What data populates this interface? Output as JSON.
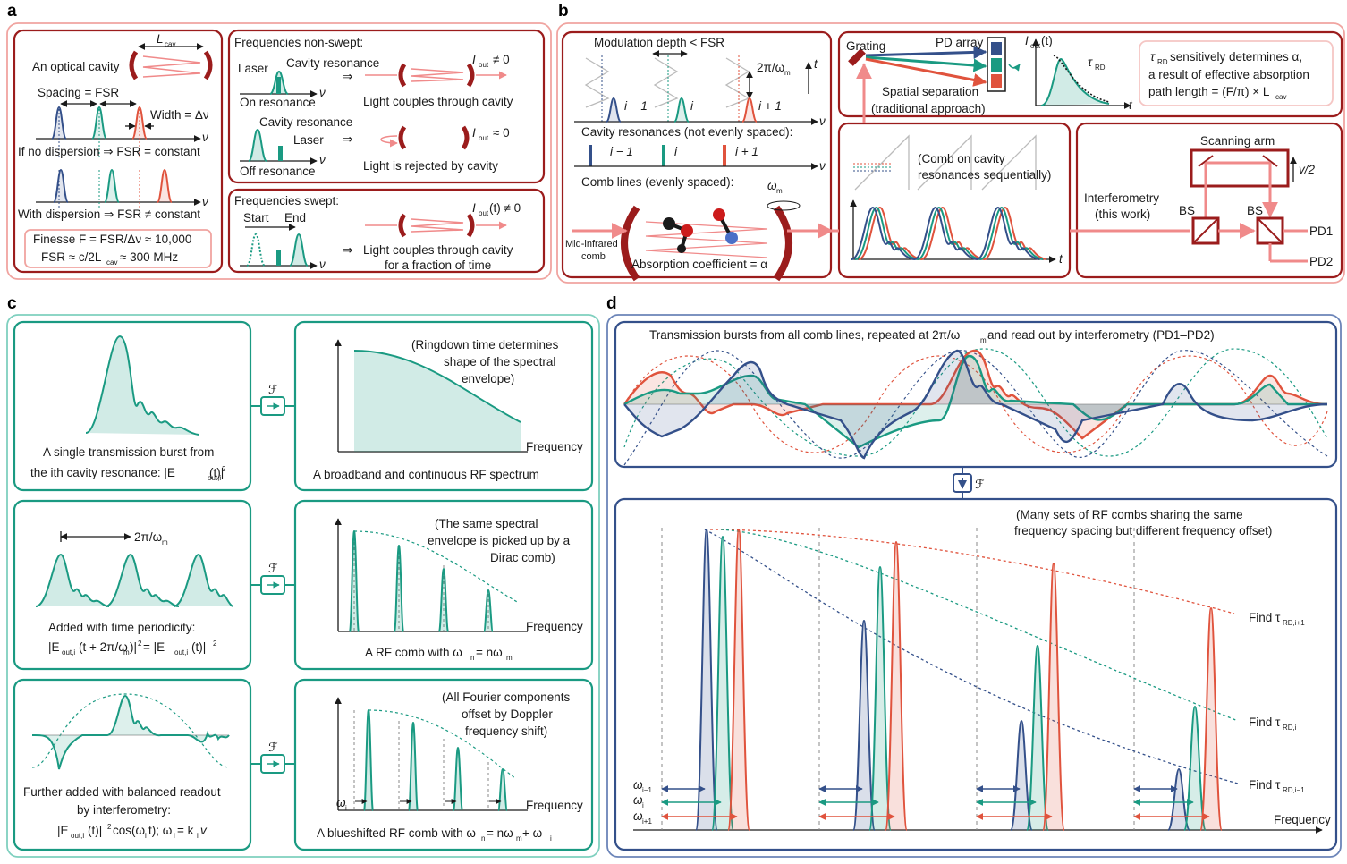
{
  "colors": {
    "red": "#e0533d",
    "teal": "#1a9a82",
    "blue": "#34508a",
    "darkred": "#9b1c1c",
    "pink": "#f08a8a"
  },
  "panel_a": {
    "label": "a",
    "optical_cavity": "An optical cavity",
    "lcav": "L",
    "lcav_sub": "cav",
    "spacing": "Spacing = FSR",
    "width": "Width = Δν",
    "nu": "ν",
    "no_dispersion": "If no dispersion ⇒ FSR = constant",
    "with_dispersion": "With dispersion ⇒ FSR ≠ constant",
    "finesse": "Finesse F = FSR/Δν ≈ 10,000",
    "fsr": "FSR ≈ c/2L",
    "fsr_sub": "cav",
    "fsr_val": " ≈ 300 MHz",
    "nonswept_title": "Frequencies non-swept:",
    "laser": "Laser",
    "cavity_resonance": "Cavity resonance",
    "on_resonance": "On resonance",
    "off_resonance": "Off resonance",
    "iout_ne0": "≠ 0",
    "iout_approx0": "≈ 0",
    "iout_label": "I",
    "iout_sub": "out",
    "couples": "Light couples through cavity",
    "rejected": "Light is rejected by cavity",
    "swept_title": "Frequencies swept:",
    "start": "Start",
    "end": "End",
    "iout_t": "(t) ≠ 0",
    "couples_frac1": "Light couples through cavity",
    "couples_frac2": "for a fraction of time",
    "arrow": "⇒"
  },
  "panel_b": {
    "label": "b",
    "mod_depth": "Modulation depth < FSR",
    "two_pi": "2π/ω",
    "two_pi_sub": "m",
    "t": "t",
    "i_minus": "i − 1",
    "i": "i",
    "i_plus": "i + 1",
    "cavity_res": "Cavity resonances (not evenly spaced):",
    "comb_lines": "Comb lines (evenly spaced):",
    "omega_m": "ω",
    "omega_m_sub": "m",
    "mid_ir1": "Mid-infrared",
    "mid_ir2": "comb",
    "absorption": "Absorption coefficient = α",
    "grating": "Grating",
    "pd_array": "PD array",
    "spatial1": "Spatial separation",
    "spatial2": "(traditional approach)",
    "iout_t": "(t)",
    "tau_rd": "τ",
    "tau_rd_sub": "RD",
    "tau_text1": "sensitively determines α,",
    "tau_text2": "a result of effective absorption",
    "tau_text3": "path length = (F/π) × L",
    "tau_text3_sub": "cav",
    "comb_on1": "(Comb on cavity",
    "comb_on2": "resonances sequentially)",
    "interf1": "Interferometry",
    "interf2": "(this work)",
    "scanning_arm": "Scanning arm",
    "v2": "v/2",
    "bs": "BS",
    "pd1": "PD1",
    "pd2": "PD2"
  },
  "panel_c": {
    "label": "c",
    "ft": "ℱ",
    "single_burst1": "A single transmission burst from",
    "single_burst2": "the ith cavity resonance: |E",
    "single_burst2_sub": "out,i",
    "single_burst2_end": "(t)|",
    "sq": "2",
    "ringdown1": "(Ringdown time determines",
    "ringdown2": "shape of the spectral",
    "ringdown3": "envelope)",
    "frequency": "Frequency",
    "broadband": "A broadband and continuous RF spectrum",
    "two_pi": "2π/ω",
    "two_pi_sub": "m",
    "periodicity1": "Added with time periodicity:",
    "periodicity2": "|E",
    "periodicity2_sub": "out,i",
    "periodicity2_b": "(t + 2π/ω",
    "periodicity2_c": ")|",
    "periodicity2_d": " = |E",
    "periodicity2_e": "(t)|",
    "same_env1": "(The same spectral",
    "same_env2": "envelope is picked up by a",
    "same_env3": "Dirac comb)",
    "rf_comb": "A RF comb with ω",
    "rf_comb_sub": "n",
    "rf_comb_end": " = nω",
    "rf_comb_end_sub": "m",
    "balanced1": "Further added with balanced readout",
    "balanced2": "by interferometry:",
    "balanced3": "|E",
    "balanced3_sub": "out,i",
    "balanced3_b": "(t)|",
    "balanced3_c": "cos(ω",
    "balanced3_d": "t); ω",
    "balanced3_e": " = k",
    "balanced3_f": "v",
    "doppler1": "(All Fourier components",
    "doppler2": "offset by Doppler",
    "doppler3": "frequency shift)",
    "omega_i": "ω",
    "omega_i_sub": "i",
    "blueshifted": "A blueshifted RF comb with ω",
    "blueshifted_sub": "n",
    "blueshifted_end": " = nω",
    "blueshifted_end_sub": "m",
    "blueshifted_end2": " + ω",
    "blueshifted_end2_sub": "i"
  },
  "panel_d": {
    "label": "d",
    "bursts": "Transmission bursts from all comb lines, repeated at 2π/ω",
    "bursts_sub": "m",
    "bursts_end": " and read out by interferometry (PD1–PD2)",
    "ft": "ℱ",
    "many1": "(Many sets of RF combs sharing the same",
    "many2": "frequency spacing but different frequency offset)",
    "find": "Find τ",
    "find_sub_plus": "RD,i+1",
    "find_sub_i": "RD,i",
    "find_sub_minus": "RD,i−1",
    "omega": "ω",
    "w_minus_sub": "i−1",
    "w_i_sub": "i",
    "w_plus_sub": "i+1",
    "frequency": "Frequency"
  }
}
